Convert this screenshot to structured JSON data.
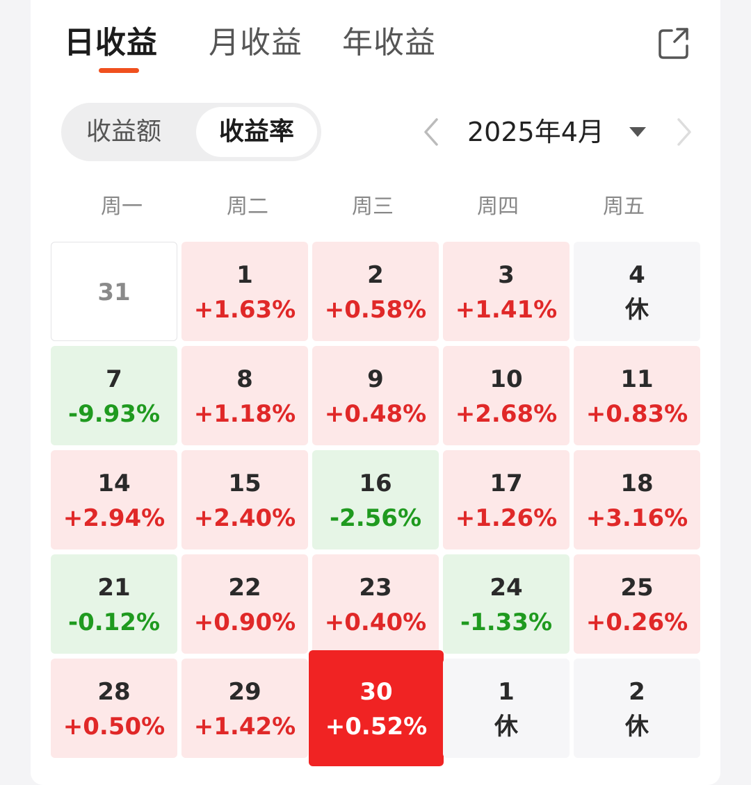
{
  "tabs": [
    {
      "label": "日收益",
      "active": true
    },
    {
      "label": "月收益",
      "active": false
    },
    {
      "label": "年收益",
      "active": false
    }
  ],
  "icons": {
    "share": "share-icon",
    "prev": "chevron-left-icon",
    "next": "chevron-right-icon",
    "caret": "caret-down-icon"
  },
  "toggle": {
    "options": [
      {
        "label": "收益额",
        "active": false
      },
      {
        "label": "收益率",
        "active": true
      }
    ]
  },
  "month": {
    "label": "2025年4月"
  },
  "weekdays": [
    "周一",
    "周二",
    "周三",
    "周四",
    "周五"
  ],
  "colors": {
    "accent": "#f0501e",
    "up_text": "#e02828",
    "up_bg": "#fde8e8",
    "down_text": "#1f9a1f",
    "down_bg": "#e6f5e6",
    "selected_bg": "#f02323"
  },
  "calendar": [
    [
      {
        "day": "31",
        "value": "",
        "kind": "plain"
      },
      {
        "day": "1",
        "value": "+1.63%",
        "kind": "up"
      },
      {
        "day": "2",
        "value": "+0.58%",
        "kind": "up"
      },
      {
        "day": "3",
        "value": "+1.41%",
        "kind": "up"
      },
      {
        "day": "4",
        "value": "休",
        "kind": "rest"
      }
    ],
    [
      {
        "day": "7",
        "value": "-9.93%",
        "kind": "down"
      },
      {
        "day": "8",
        "value": "+1.18%",
        "kind": "up"
      },
      {
        "day": "9",
        "value": "+0.48%",
        "kind": "up"
      },
      {
        "day": "10",
        "value": "+2.68%",
        "kind": "up"
      },
      {
        "day": "11",
        "value": "+0.83%",
        "kind": "up"
      }
    ],
    [
      {
        "day": "14",
        "value": "+2.94%",
        "kind": "up"
      },
      {
        "day": "15",
        "value": "+2.40%",
        "kind": "up"
      },
      {
        "day": "16",
        "value": "-2.56%",
        "kind": "down"
      },
      {
        "day": "17",
        "value": "+1.26%",
        "kind": "up"
      },
      {
        "day": "18",
        "value": "+3.16%",
        "kind": "up"
      }
    ],
    [
      {
        "day": "21",
        "value": "-0.12%",
        "kind": "down"
      },
      {
        "day": "22",
        "value": "+0.90%",
        "kind": "up"
      },
      {
        "day": "23",
        "value": "+0.40%",
        "kind": "up"
      },
      {
        "day": "24",
        "value": "-1.33%",
        "kind": "down"
      },
      {
        "day": "25",
        "value": "+0.26%",
        "kind": "up"
      }
    ],
    [
      {
        "day": "28",
        "value": "+0.50%",
        "kind": "up"
      },
      {
        "day": "29",
        "value": "+1.42%",
        "kind": "up"
      },
      {
        "day": "30",
        "value": "+0.52%",
        "kind": "selected"
      },
      {
        "day": "1",
        "value": "休",
        "kind": "rest"
      },
      {
        "day": "2",
        "value": "休",
        "kind": "rest"
      }
    ]
  ]
}
